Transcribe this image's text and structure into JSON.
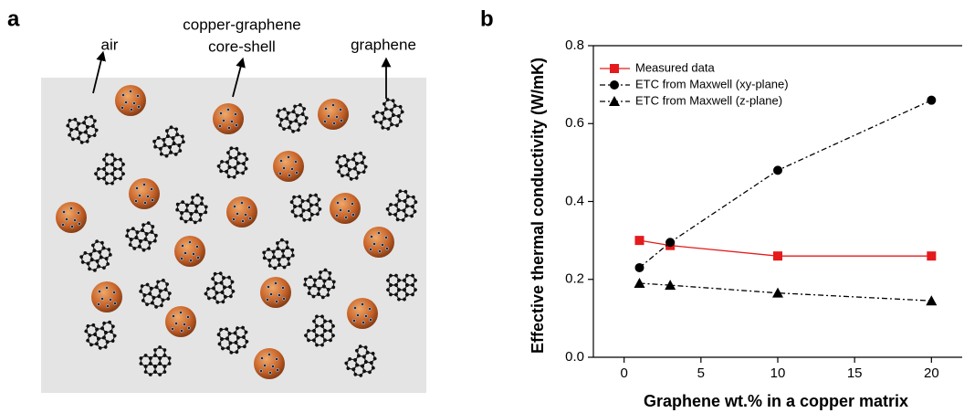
{
  "panel_a": {
    "label": "a",
    "air": "air",
    "core_shell": [
      "copper-graphene",
      "core-shell"
    ],
    "graphene": "graphene"
  },
  "panel_b": {
    "label": "b"
  },
  "chart_data": {
    "type": "line",
    "x_label": "Graphene wt.% in a copper matrix",
    "y_label": "Effective thermal conductivity (W/mK)",
    "x": [
      1,
      3,
      10,
      20
    ],
    "series": [
      {
        "name": "Measured data",
        "color": "#e41a1c",
        "marker": "square",
        "linestyle": "solid",
        "values": [
          0.3,
          0.287,
          0.26,
          0.26
        ]
      },
      {
        "name": "ETC from Maxwell (xy-plane)",
        "color": "#000000",
        "marker": "circle",
        "linestyle": "dashdot",
        "values": [
          0.23,
          0.295,
          0.48,
          0.66
        ]
      },
      {
        "name": "ETC from Maxwell (z-plane)",
        "color": "#000000",
        "marker": "triangle",
        "linestyle": "dashdot",
        "values": [
          0.19,
          0.185,
          0.165,
          0.145
        ]
      }
    ],
    "xlim": [
      -2,
      22
    ],
    "xticks": [
      0,
      5,
      10,
      15,
      20
    ],
    "ylim": [
      0,
      0.8
    ],
    "yticks": [
      {
        "value": 0,
        "label": "0.0"
      },
      0.2,
      0.4,
      0.6,
      0.8
    ],
    "legend": "upper left"
  }
}
